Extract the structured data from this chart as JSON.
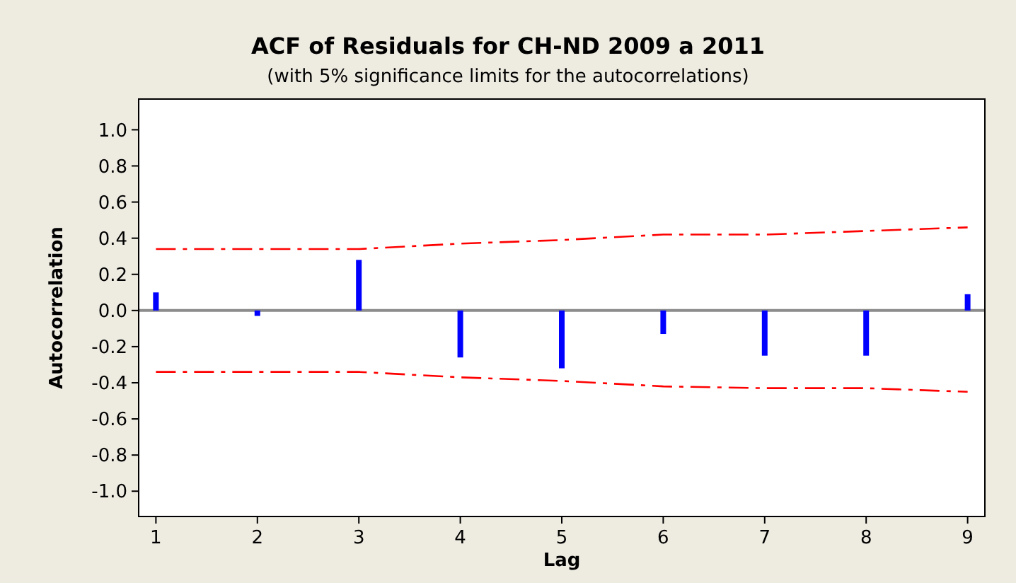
{
  "chart_data": {
    "type": "bar",
    "title": "ACF of Residuals for CH-ND 2009 a 2011",
    "subtitle": "(with 5% significance limits for the autocorrelations)",
    "xlabel": "Lag",
    "ylabel": "Autocorrelation",
    "x": [
      1,
      2,
      3,
      4,
      5,
      6,
      7,
      8,
      9
    ],
    "series": [
      {
        "color": "#0000ff",
        "values": [
          0.1,
          -0.03,
          0.28,
          -0.26,
          -0.32,
          -0.13,
          -0.25,
          -0.25,
          0.09
        ]
      },
      {
        "type": "line",
        "color": "#ff0000",
        "line_style": "dashed",
        "values": [
          0.34,
          0.34,
          0.34,
          0.37,
          0.39,
          0.42,
          0.42,
          0.44,
          0.46
        ]
      },
      {
        "type": "line",
        "color": "#ff0000",
        "line_style": "dashed",
        "values": [
          -0.34,
          -0.34,
          -0.34,
          -0.37,
          -0.39,
          -0.42,
          -0.43,
          -0.43,
          -0.45
        ]
      }
    ],
    "xlim": [
      0.83,
      9.17
    ],
    "xticks": [
      1,
      2,
      3,
      4,
      5,
      6,
      7,
      8,
      9
    ],
    "ylim": [
      -1.14,
      1.17
    ],
    "yticks": [
      {
        "value": -1,
        "label": "-1.0"
      },
      {
        "value": -0.8,
        "label": "-0.8"
      },
      {
        "value": -0.6,
        "label": "-0.6"
      },
      {
        "value": -0.4,
        "label": "-0.4"
      },
      {
        "value": -0.2,
        "label": "-0.2"
      },
      {
        "value": 0,
        "label": "0.0"
      },
      {
        "value": 0.2,
        "label": "0.2"
      },
      {
        "value": 0.4,
        "label": "0.4"
      },
      {
        "value": 0.6,
        "label": "0.6"
      },
      {
        "value": 0.8,
        "label": "0.8"
      },
      {
        "value": 1,
        "label": "1.0"
      }
    ],
    "ref_lines": [
      {
        "axis": "y",
        "value": 0,
        "color": "#8c8c8c"
      }
    ],
    "grid": false,
    "marker": "none"
  }
}
